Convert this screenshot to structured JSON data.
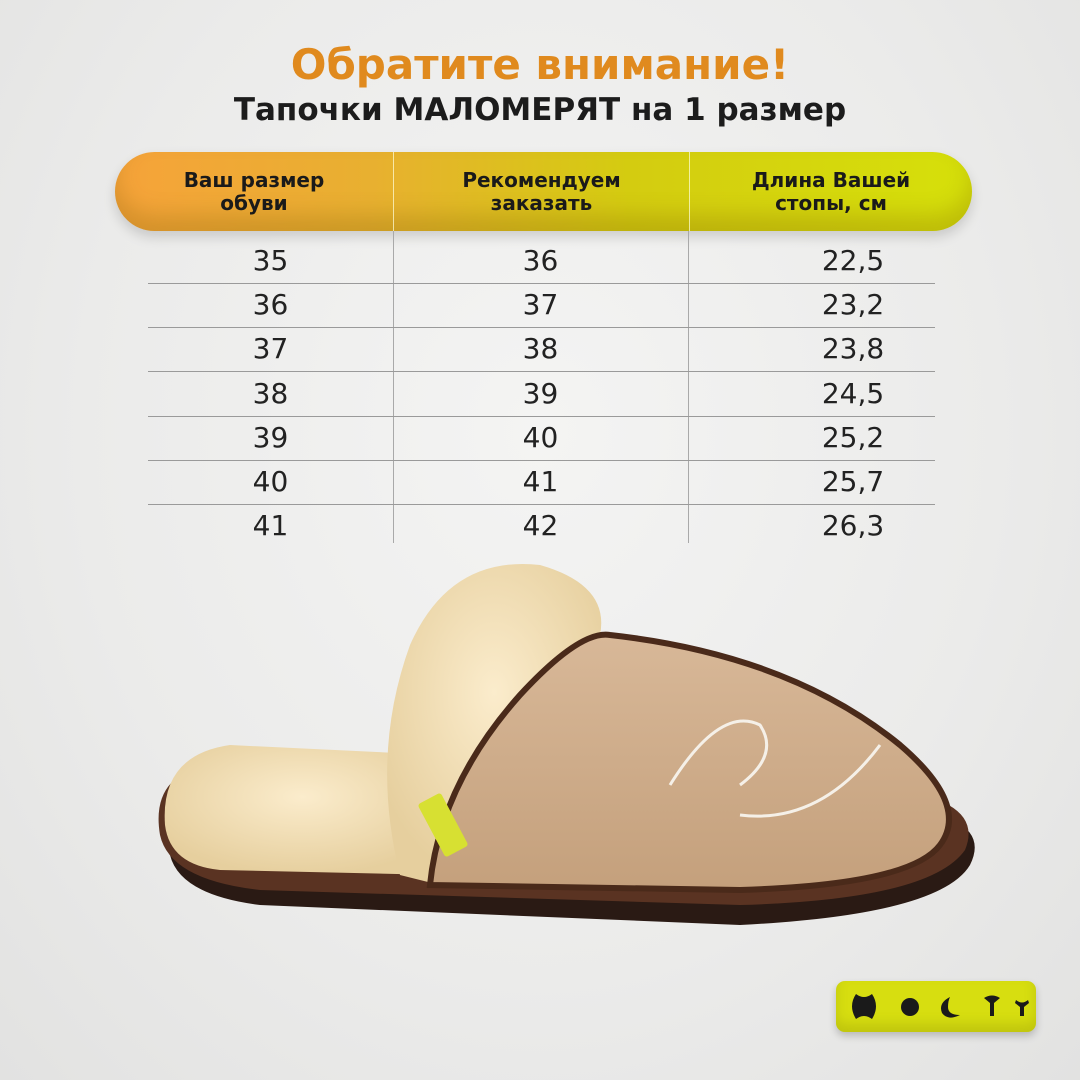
{
  "heading": {
    "title": "Обратите внимание!",
    "subtitle": "Тапочки МАЛОМЕРЯТ на 1 размер"
  },
  "table": {
    "columns": [
      "Ваш размер\nобуви",
      "Рекомендуем\nзаказать",
      "Длина Вашей\nстопы, см"
    ],
    "rows": [
      [
        "35",
        "36",
        "22,5"
      ],
      [
        "36",
        "37",
        "23,2"
      ],
      [
        "37",
        "38",
        "23,8"
      ],
      [
        "38",
        "39",
        "24,5"
      ],
      [
        "39",
        "40",
        "25,2"
      ],
      [
        "40",
        "41",
        "25,7"
      ],
      [
        "41",
        "42",
        "26,3"
      ]
    ]
  },
  "colors": {
    "title": "#e08a1e",
    "header_start": "#f6a33a",
    "header_end": "#d6e00a",
    "logo_bg": "#d7de10"
  },
  "logo": {
    "text": "HOCTY"
  },
  "image": {
    "subject": "slipper-icon"
  }
}
